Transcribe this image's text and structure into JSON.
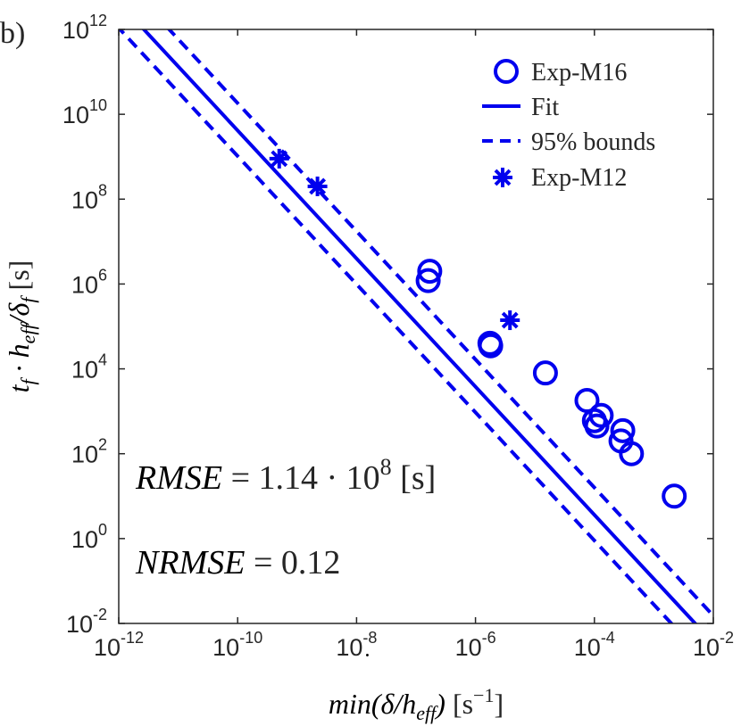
{
  "panel_label": "b)",
  "chart_data": {
    "type": "scatter",
    "title": "",
    "xscale": "log",
    "yscale": "log",
    "xlim": [
      1e-12,
      0.01
    ],
    "ylim": [
      0.01,
      1000000000000.0
    ],
    "xticks": [
      {
        "base": "10",
        "exp": "-12",
        "value": 1e-12
      },
      {
        "base": "10",
        "exp": "-10",
        "value": 1e-10
      },
      {
        "base": "10",
        "exp": "-8",
        "value": 1e-08
      },
      {
        "base": "10",
        "exp": "-6",
        "value": 1e-06
      },
      {
        "base": "10",
        "exp": "-4",
        "value": 0.0001
      },
      {
        "base": "10",
        "exp": "-2",
        "value": 0.01
      }
    ],
    "yticks": [
      {
        "base": "10",
        "exp": "-2",
        "value": 0.01
      },
      {
        "base": "10",
        "exp": "0",
        "value": 1.0
      },
      {
        "base": "10",
        "exp": "2",
        "value": 100.0
      },
      {
        "base": "10",
        "exp": "4",
        "value": 10000.0
      },
      {
        "base": "10",
        "exp": "6",
        "value": 1000000.0
      },
      {
        "base": "10",
        "exp": "8",
        "value": 100000000.0
      },
      {
        "base": "10",
        "exp": "10",
        "value": 10000000000.0
      },
      {
        "base": "10",
        "exp": "12",
        "value": 1000000000000.0
      }
    ],
    "xlabel": {
      "pre": "min(",
      "dot": "δ",
      "mid": "/h",
      "sub": "eff",
      "post": ")",
      "unit": " [s",
      "sup": "−1",
      "unit_end": "]"
    },
    "ylabel": {
      "t": "t",
      "t_sub": "f",
      "dot": " · h",
      "h_sub": "eff",
      "slash": "/δ",
      "d_sub": "f",
      "unit": " [s]"
    },
    "color": "#0000ee",
    "series": [
      {
        "name": "Exp-M16",
        "kind": "circle",
        "points": [
          [
            1.7e-07,
            2000000.0
          ],
          [
            1.6e-07,
            1200000.0
          ],
          [
            1.8e-06,
            35000.0
          ],
          [
            1.75e-06,
            40000.0
          ],
          [
            1.5e-05,
            8000.0
          ],
          [
            7.5e-05,
            1800.0
          ],
          [
            0.0001,
            600.0
          ],
          [
            0.00011,
            450.0
          ],
          [
            0.00013,
            800.0
          ],
          [
            0.00028,
            200.0
          ],
          [
            0.0003,
            350.0
          ],
          [
            0.00042,
            100.0
          ],
          [
            0.0022,
            10.0
          ]
        ]
      },
      {
        "name": "Fit",
        "kind": "line",
        "style": "solid",
        "equation": {
          "a": 3.3e-06,
          "b": -1.51
        }
      },
      {
        "name": "95% bounds",
        "kind": "line",
        "style": "dashed",
        "equations": [
          {
            "a": 1.45e-05,
            "b": -1.51
          },
          {
            "a": 8.2e-07,
            "b": -1.51
          }
        ]
      },
      {
        "name": "Exp-M12",
        "kind": "asterisk",
        "points": [
          [
            5e-10,
            900000000.0
          ],
          [
            2.2e-09,
            200000000.0
          ],
          [
            3.8e-06,
            140000.0
          ]
        ]
      }
    ],
    "legend": {
      "position": "top-right",
      "entries": [
        "Exp-M16",
        "Fit",
        "95% bounds",
        "Exp-M12"
      ]
    },
    "annotations": [
      {
        "lhs": "RMSE",
        "eq": " = 1.14 · 10",
        "sup": "8",
        "unit": " [s]"
      },
      {
        "lhs": "NRMSE",
        "eq": " = 0.12"
      }
    ]
  }
}
